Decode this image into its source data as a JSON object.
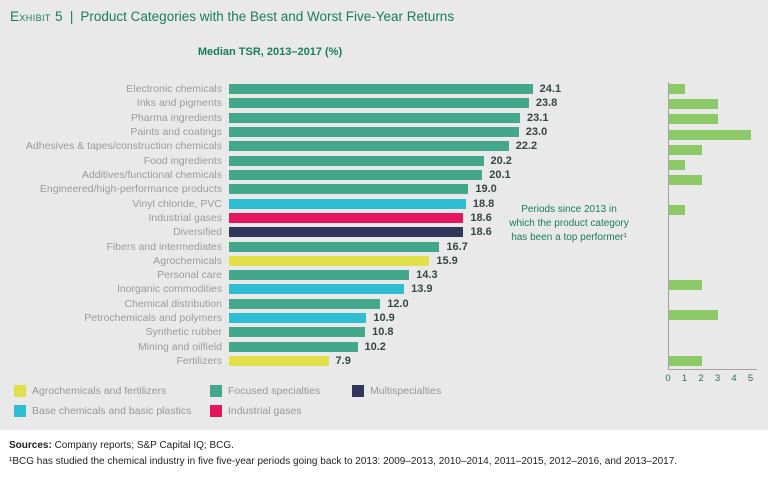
{
  "header": {
    "exhibit_label": "Exhibit 5",
    "separator": "|",
    "title": "Product Categories with the Best and Worst Five-Year Returns"
  },
  "subtitle": "Median TSR, 2013–2017 (%)",
  "annotation": {
    "lines": [
      "Periods since 2013 in",
      "which the product category",
      "has been a top performer¹"
    ]
  },
  "colors": {
    "focused_specialties": "#43a78c",
    "base_chemicals": "#2fbdd3",
    "industrial_gases": "#e5175c",
    "multispecialties": "#31365c",
    "agro_fertilizers": "#e1e04b",
    "top_performer_green": "#8ec967",
    "title_green": "#197d5b"
  },
  "chart_data": {
    "type": "bar",
    "orientation": "horizontal",
    "title": "Median TSR, 2013–2017 (%)",
    "grid": false,
    "legend_position": "bottom",
    "categories": [
      "Electronic chemicals",
      "Inks and pigments",
      "Pharma ingredients",
      "Paints and coatings",
      "Adhesives & tapes/construction chemicals",
      "Food ingredients",
      "Additives/functional chemicals",
      "Engineered/high-performance products",
      "Vinyl chloride, PVC",
      "Industrial gases",
      "Diversified",
      "Fibers and intermediates",
      "Agrochemicals",
      "Personal care",
      "Inorganic commodities",
      "Chemical distribution",
      "Petrochemicals and polymers",
      "Synthetic rubber",
      "Mining and oilfield",
      "Fertilizers"
    ],
    "groups": [
      "focused_specialties",
      "focused_specialties",
      "focused_specialties",
      "focused_specialties",
      "focused_specialties",
      "focused_specialties",
      "focused_specialties",
      "focused_specialties",
      "base_chemicals",
      "industrial_gases",
      "multispecialties",
      "focused_specialties",
      "agro_fertilizers",
      "focused_specialties",
      "base_chemicals",
      "focused_specialties",
      "base_chemicals",
      "focused_specialties",
      "focused_specialties",
      "agro_fertilizers"
    ],
    "series": [
      {
        "name": "Median TSR, 2013–2017 (%)",
        "values": [
          24.1,
          23.8,
          23.1,
          23.0,
          22.2,
          20.2,
          20.1,
          19.0,
          18.8,
          18.6,
          18.6,
          16.7,
          15.9,
          14.3,
          13.9,
          12.0,
          10.9,
          10.8,
          10.2,
          7.9
        ],
        "xlim": [
          0,
          25
        ],
        "data_labels": true
      },
      {
        "name": "Periods since 2013 in which the product category has been a top performer",
        "values": [
          1,
          3,
          3,
          5,
          2,
          1,
          2,
          0,
          1,
          0,
          null,
          0,
          0,
          0,
          2,
          0,
          3,
          0,
          0,
          2
        ],
        "xlim": [
          0,
          5
        ],
        "ticks": [
          0,
          1,
          2,
          3,
          4,
          5
        ]
      }
    ],
    "legend": [
      {
        "label": "Agrochemicals and fertilizers",
        "color_key": "agro_fertilizers"
      },
      {
        "label": "Base chemicals and basic plastics",
        "color_key": "base_chemicals"
      },
      {
        "label": "Focused specialties",
        "color_key": "focused_specialties"
      },
      {
        "label": "Industrial gases",
        "color_key": "industrial_gases"
      },
      {
        "label": "Multispecialties",
        "color_key": "multispecialties"
      }
    ]
  },
  "footer": {
    "sources_label": "Sources:",
    "sources_text": " Company reports; S&P Capital IQ; BCG.",
    "footnote": "¹BCG has studied the chemical industry in five five-year periods going back to 2013: 2009–2013, 2010–2014, 2011–2015, 2012–2016, and 2013–2017."
  }
}
